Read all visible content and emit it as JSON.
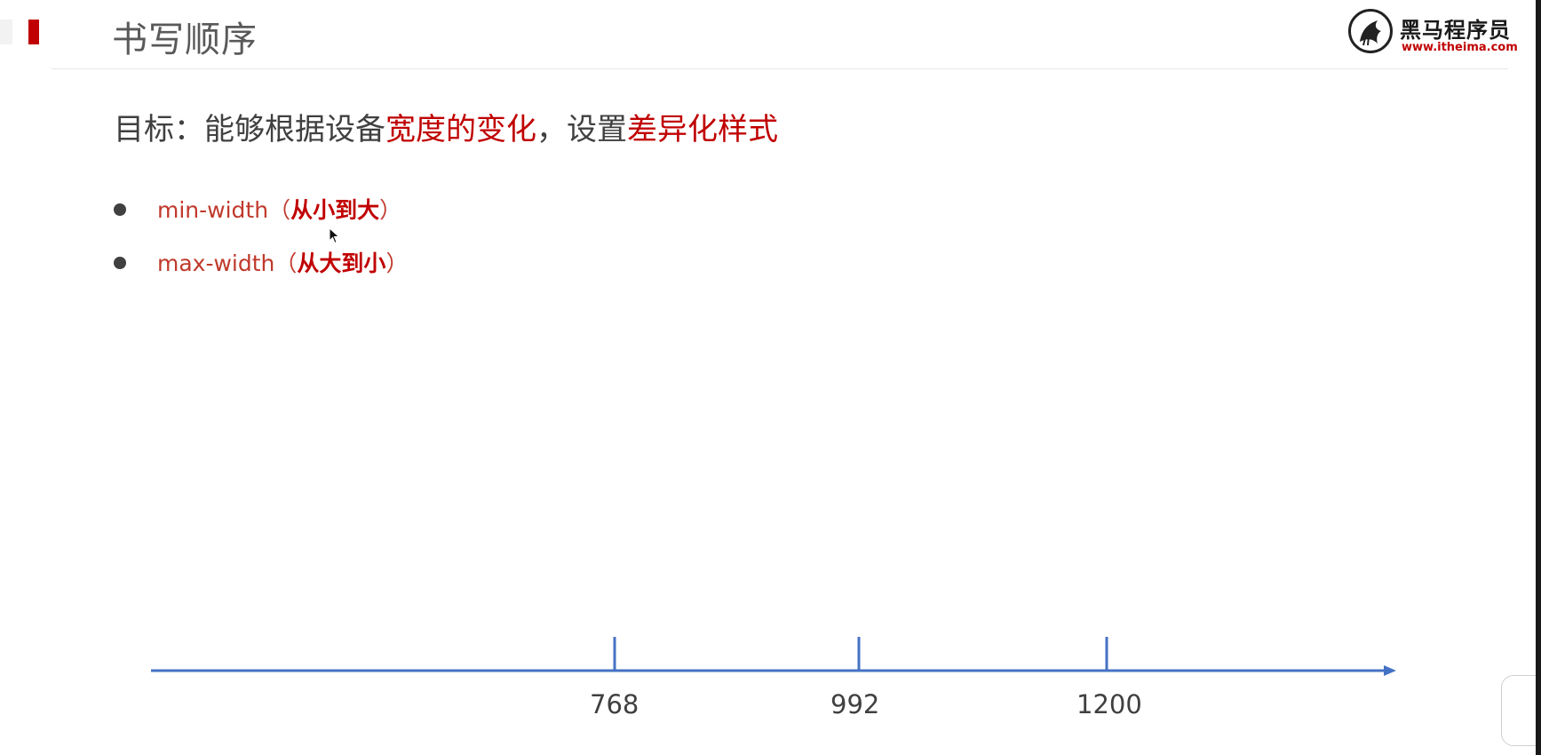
{
  "slide": {
    "title": "书写顺序",
    "logo": {
      "name_cn": "黑马程序员",
      "url": "www.itheima.com",
      "icon": "horse-logo-icon"
    },
    "goal": {
      "prefix": "目标：能够根据设备",
      "highlight1": "宽度的变化",
      "middle": "，设置",
      "highlight2": "差异化样式"
    },
    "bullets": [
      {
        "term": "min-width",
        "open": "（",
        "note": "从小到大",
        "close": "）"
      },
      {
        "term": "max-width",
        "open": "（",
        "note": "从大到小",
        "close": "）"
      }
    ],
    "axis": {
      "ticks": [
        "768",
        "992",
        "1200"
      ],
      "color": "#4472c4"
    },
    "colors": {
      "accent": "#c00000",
      "text": "#404040"
    }
  }
}
